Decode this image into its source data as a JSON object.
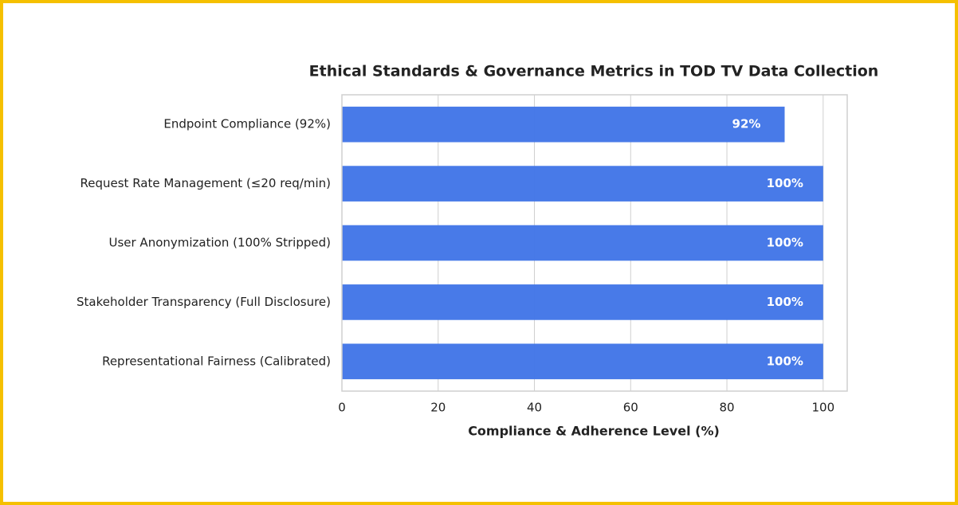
{
  "chart_data": {
    "type": "barh",
    "title": "Ethical Standards & Governance Metrics in TOD TV Data Collection",
    "x_label": "Compliance & Adherence Level (%)",
    "categories": [
      "Endpoint Compliance (92%)",
      "Request Rate Management (≤20 req/min)",
      "User Anonymization (100% Stripped)",
      "Stakeholder Transparency (Full Disclosure)",
      "Representational Fairness (Calibrated)"
    ],
    "values": [
      92,
      100,
      100,
      100,
      100
    ],
    "value_labels": [
      "92%",
      "100%",
      "100%",
      "100%",
      "100%"
    ],
    "color": "#4477e8",
    "xlim": [
      0,
      105
    ],
    "xticks": [
      0,
      20,
      40,
      60,
      80,
      100
    ],
    "grid": true
  }
}
